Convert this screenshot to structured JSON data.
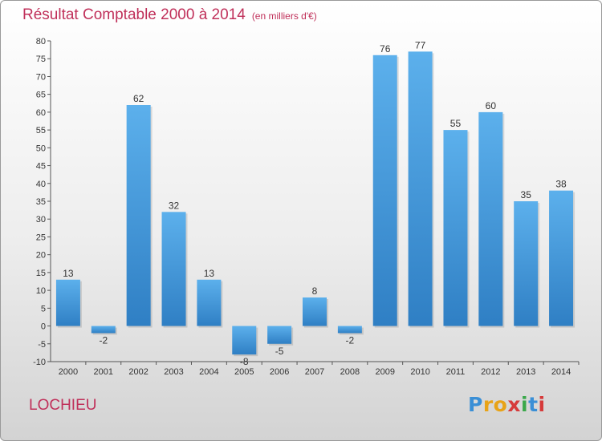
{
  "header": {
    "title": "Résultat Comptable 2000 à 2014",
    "subtitle": "(en milliers d'€)"
  },
  "footer": {
    "commune": "LOCHIEU",
    "brand": {
      "letters": [
        "P",
        "r",
        "o",
        "x",
        "i",
        "t",
        "i"
      ],
      "colors": [
        "#3a8fd6",
        "#e8a317",
        "#e8a317",
        "#d63a3a",
        "#3aa84a",
        "#3a8fd6",
        "#d63a3a"
      ]
    }
  },
  "colors": {
    "bar": "#4a9ee0",
    "title": "#c0305a"
  },
  "chart_data": {
    "type": "bar",
    "categories": [
      "2000",
      "2001",
      "2002",
      "2003",
      "2004",
      "2005",
      "2006",
      "2007",
      "2008",
      "2009",
      "2010",
      "2011",
      "2012",
      "2013",
      "2014"
    ],
    "values": [
      13,
      -2,
      62,
      32,
      13,
      -8,
      -5,
      8,
      -2,
      76,
      77,
      55,
      60,
      35,
      38
    ],
    "title": "Résultat Comptable 2000 à 2014",
    "subtitle": "(en milliers d'€)",
    "xlabel": "",
    "ylabel": "",
    "ylim": [
      -10,
      80
    ],
    "yticks": [
      -10,
      -5,
      0,
      5,
      10,
      15,
      20,
      25,
      30,
      35,
      40,
      45,
      50,
      55,
      60,
      65,
      70,
      75,
      80
    ],
    "grid": false,
    "legend": "none"
  }
}
